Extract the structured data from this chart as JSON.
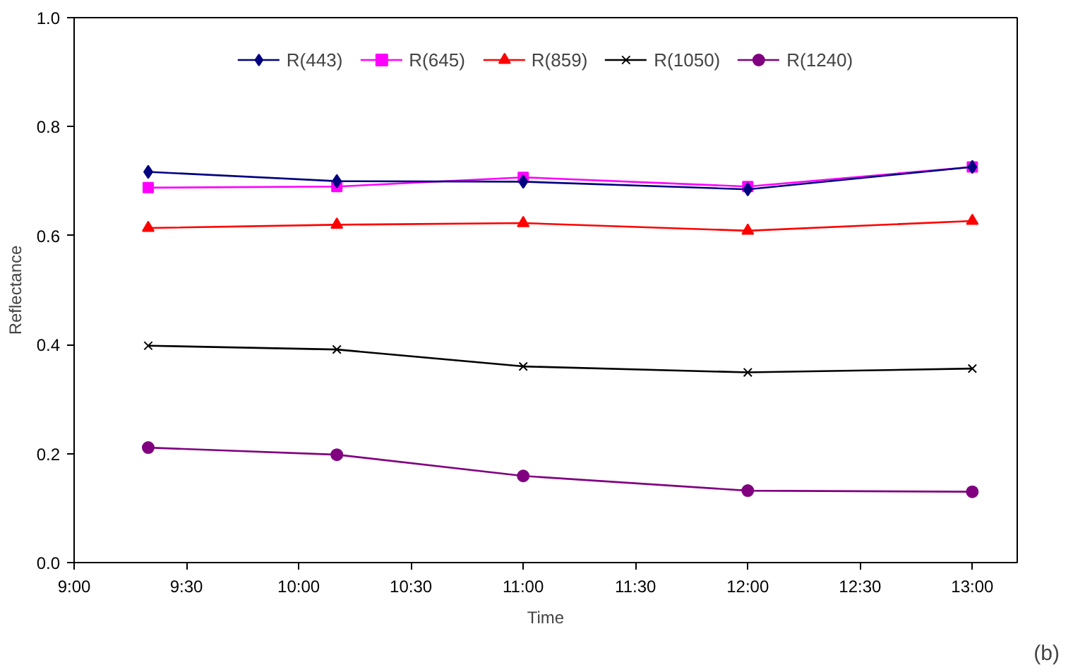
{
  "chart_data": {
    "type": "line",
    "xlabel": "Time",
    "ylabel": "Reflectance",
    "annotations": [
      "(b)"
    ],
    "x": [
      9.33,
      10.17,
      11.0,
      12.0,
      13.0
    ],
    "series": [
      {
        "name": "R(443)",
        "color": "#000080",
        "marker": "diamond",
        "values": [
          0.717,
          0.7,
          0.699,
          0.685,
          0.726
        ]
      },
      {
        "name": "R(645)",
        "color": "#ff00ff",
        "marker": "square",
        "values": [
          0.688,
          0.69,
          0.707,
          0.69,
          0.726
        ]
      },
      {
        "name": "R(859)",
        "color": "#ff0000",
        "marker": "triangle",
        "values": [
          0.614,
          0.62,
          0.623,
          0.609,
          0.627
        ]
      },
      {
        "name": "R(1050)",
        "color": "#000000",
        "marker": "cross",
        "values": [
          0.398,
          0.391,
          0.36,
          0.349,
          0.356
        ]
      },
      {
        "name": "R(1240)",
        "color": "#800080",
        "marker": "circle",
        "values": [
          0.211,
          0.198,
          0.159,
          0.132,
          0.13
        ]
      }
    ],
    "xlim": [
      9.0,
      13.2
    ],
    "ylim": [
      0.0,
      1.0
    ],
    "xticks": [
      {
        "value": 9.0,
        "label": "9:00"
      },
      {
        "value": 9.5,
        "label": "9:30"
      },
      {
        "value": 10.0,
        "label": "10:00"
      },
      {
        "value": 10.5,
        "label": "10:30"
      },
      {
        "value": 11.0,
        "label": "11:00"
      },
      {
        "value": 11.5,
        "label": "11:30"
      },
      {
        "value": 12.0,
        "label": "12:00"
      },
      {
        "value": 12.5,
        "label": "12:30"
      },
      {
        "value": 13.0,
        "label": "13:00"
      }
    ],
    "yticks": [
      {
        "value": 0.0,
        "label": "0.0"
      },
      {
        "value": 0.2,
        "label": "0.2"
      },
      {
        "value": 0.4,
        "label": "0.4"
      },
      {
        "value": 0.6,
        "label": "0.6"
      },
      {
        "value": 0.8,
        "label": "0.8"
      },
      {
        "value": 1.0,
        "label": "1.0"
      }
    ],
    "grid": false,
    "legend": "top",
    "line_style": "solid"
  }
}
